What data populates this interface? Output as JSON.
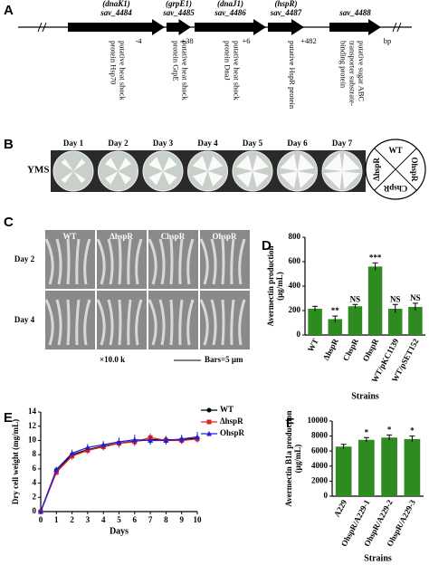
{
  "panels": {
    "a": {
      "letter": "A",
      "genes": [
        {
          "alias": "(dnaK1)",
          "name": "sav_4484",
          "description": [
            "putative heat shock",
            "protein Hsp70"
          ]
        },
        {
          "alias": "(grpE1)",
          "name": "sav_4485",
          "description": [
            "putative heat shock",
            "protein GrpE"
          ]
        },
        {
          "alias": "(dnaJ1)",
          "name": "sav_4486",
          "description": [
            "putative heat shock",
            "protein DnaJ"
          ]
        },
        {
          "alias": "(hspR)",
          "name": "sav_4487",
          "description": [
            "putative HspR protein"
          ]
        },
        {
          "name": "sav_4488",
          "description": [
            "putative sugar ABC",
            "transporter substrate-",
            "binding protein"
          ]
        }
      ],
      "gaps": [
        "-4",
        "+38",
        "+6",
        "+482",
        "bp"
      ]
    },
    "b": {
      "letter": "B",
      "medium": "YMS",
      "days": [
        "Day 1",
        "Day 2",
        "Day 3",
        "Day 4",
        "Day 5",
        "Day 6",
        "Day 7"
      ],
      "key": [
        "WT",
        "OhspR",
        "ChspR",
        "ΔhspR"
      ]
    },
    "c": {
      "letter": "C",
      "columns": [
        "WT",
        "ΔhspR",
        "ChspR",
        "OhspR"
      ],
      "rows": [
        "Day 2",
        "Day 4"
      ],
      "magnification": "×10.0 k",
      "scale_bar": "Bars=5 μm"
    }
  },
  "chart_data": [
    {
      "type": "bar",
      "letter": "D",
      "ylabel": [
        "Avermectin production",
        "(μg/mL)"
      ],
      "xlabel": "Strains",
      "categories": [
        "WT",
        "ΔhspR",
        "ChspR",
        "OhspR",
        "WT/pKC1139",
        "WT/pSET152"
      ],
      "values": [
        215,
        130,
        235,
        560,
        215,
        230
      ],
      "errors": [
        20,
        25,
        15,
        30,
        35,
        30
      ],
      "annotations": [
        null,
        "**",
        "NS",
        "***",
        "NS",
        "NS"
      ],
      "color": "#2e8b1f",
      "ylim": [
        0,
        800
      ],
      "yticks": [
        0,
        200,
        400,
        600,
        800
      ]
    },
    {
      "type": "line",
      "letter": "E",
      "ylabel": [
        "Dry cell weight (mg/mL)"
      ],
      "xlabel": "Days",
      "x": [
        0,
        1,
        2,
        3,
        4,
        5,
        6,
        7,
        8,
        9,
        10
      ],
      "series": [
        {
          "name": "WT",
          "color": "#000000",
          "marker": "circle",
          "values": [
            0,
            5.8,
            8.0,
            8.7,
            9.2,
            9.6,
            9.9,
            10.1,
            10.1,
            10.1,
            10.3
          ],
          "errors": [
            0,
            0.4,
            0.5,
            0.4,
            0.5,
            0.5,
            0.5,
            0.6,
            0.5,
            0.5,
            0.5
          ]
        },
        {
          "name": "ΔhspR",
          "color": "#e02020",
          "marker": "square",
          "values": [
            0,
            5.5,
            7.8,
            8.6,
            9.1,
            9.6,
            9.8,
            10.4,
            10.0,
            10.0,
            10.2
          ],
          "errors": [
            0,
            0.4,
            0.5,
            0.5,
            0.5,
            0.6,
            0.6,
            0.6,
            0.5,
            0.5,
            0.5
          ]
        },
        {
          "name": "OhspR",
          "color": "#2020d0",
          "marker": "triangle",
          "values": [
            0,
            5.9,
            8.2,
            9.0,
            9.4,
            9.8,
            10.1,
            10.0,
            10.0,
            10.2,
            10.5
          ],
          "errors": [
            0,
            0.4,
            0.5,
            0.5,
            0.5,
            0.6,
            0.7,
            0.6,
            0.6,
            0.6,
            0.7
          ]
        }
      ],
      "xlim": [
        0,
        10
      ],
      "xticks": [
        0,
        1,
        2,
        3,
        4,
        5,
        6,
        7,
        8,
        9,
        10
      ],
      "ylim": [
        0,
        14
      ],
      "yticks": [
        0,
        2,
        4,
        6,
        8,
        10,
        12,
        14
      ]
    },
    {
      "type": "bar",
      "letter": "F",
      "ylabel": [
        "Avermectin B1a production",
        "(μg/mL)"
      ],
      "xlabel": "Strains",
      "categories": [
        "A229",
        "OhspR/A229-1",
        "OhspR/A229-2",
        "OhspR/A229-3"
      ],
      "values": [
        6600,
        7500,
        7800,
        7600
      ],
      "errors": [
        300,
        300,
        350,
        400
      ],
      "annotations": [
        null,
        "*",
        "*",
        "*"
      ],
      "color": "#2e8b1f",
      "ylim": [
        0,
        10000
      ],
      "yticks": [
        0,
        2000,
        4000,
        6000,
        8000,
        10000
      ]
    }
  ]
}
